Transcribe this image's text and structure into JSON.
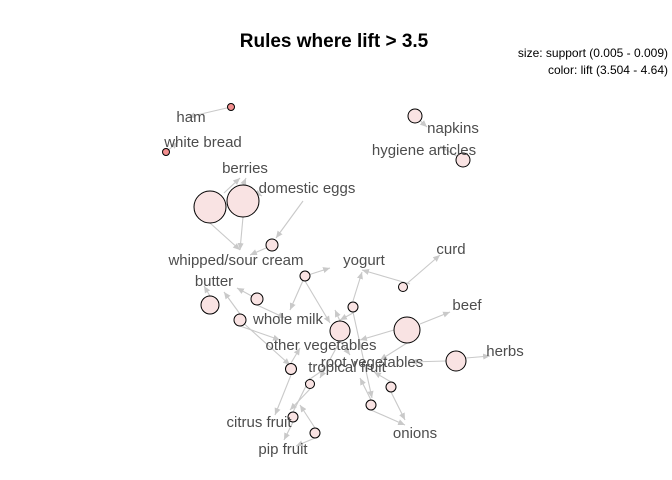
{
  "title": "Rules where lift > 3.5",
  "legend": {
    "size_line": "size: support (0.005 - 0.009)",
    "color_line": "color: lift (3.504 - 4.64)"
  },
  "colors": {
    "edge": "#c9c9c9",
    "label": "#4d4d4d",
    "rule_fill_low": "#f9e3e3",
    "rule_fill_high": "#f28f8f"
  },
  "items": [
    {
      "id": "ham",
      "label": "ham"
    },
    {
      "id": "white_bread",
      "label": "white bread"
    },
    {
      "id": "napkins",
      "label": "napkins"
    },
    {
      "id": "hygiene_articles",
      "label": "hygiene articles"
    },
    {
      "id": "berries",
      "label": "berries"
    },
    {
      "id": "domestic_eggs",
      "label": "domestic eggs"
    },
    {
      "id": "curd",
      "label": "curd"
    },
    {
      "id": "whipped_sour_cream",
      "label": "whipped/sour cream"
    },
    {
      "id": "yogurt",
      "label": "yogurt"
    },
    {
      "id": "butter",
      "label": "butter"
    },
    {
      "id": "beef",
      "label": "beef"
    },
    {
      "id": "whole_milk",
      "label": "whole milk"
    },
    {
      "id": "herbs",
      "label": "herbs"
    },
    {
      "id": "other_vegetables",
      "label": "other vegetables"
    },
    {
      "id": "root_vegetables",
      "label": "root vegetables"
    },
    {
      "id": "tropical_fruit",
      "label": "tropical fruit"
    },
    {
      "id": "citrus_fruit",
      "label": "citrus fruit"
    },
    {
      "id": "pip_fruit",
      "label": "pip fruit"
    },
    {
      "id": "onions",
      "label": "onions"
    }
  ]
}
